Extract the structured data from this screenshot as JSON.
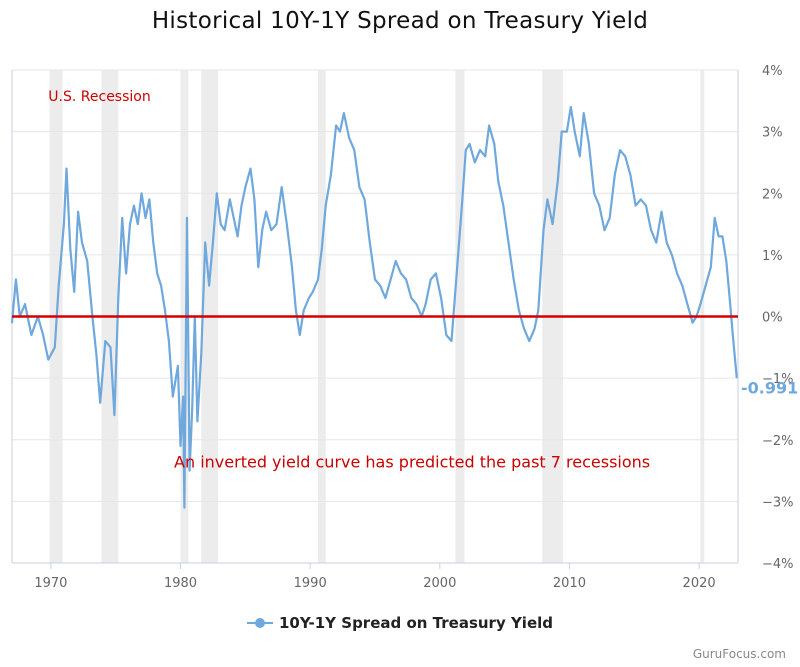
{
  "chart_data": {
    "type": "line",
    "title": "Historical 10Y-1Y Spread on Treasury Yield",
    "series": [
      {
        "name": "10Y-1Y Spread on Treasury Yield",
        "color": "#6fa8dc",
        "points": [
          [
            1967.0,
            -0.1
          ],
          [
            1967.3,
            0.6
          ],
          [
            1967.6,
            0.0
          ],
          [
            1968.0,
            0.2
          ],
          [
            1968.5,
            -0.3
          ],
          [
            1969.0,
            0.0
          ],
          [
            1969.4,
            -0.3
          ],
          [
            1969.8,
            -0.7
          ],
          [
            1970.3,
            -0.5
          ],
          [
            1970.6,
            0.5
          ],
          [
            1971.0,
            1.5
          ],
          [
            1971.2,
            2.4
          ],
          [
            1971.5,
            1.1
          ],
          [
            1971.8,
            0.4
          ],
          [
            1972.1,
            1.7
          ],
          [
            1972.4,
            1.2
          ],
          [
            1972.8,
            0.9
          ],
          [
            1973.2,
            0.0
          ],
          [
            1973.5,
            -0.6
          ],
          [
            1973.8,
            -1.4
          ],
          [
            1974.2,
            -0.4
          ],
          [
            1974.6,
            -0.5
          ],
          [
            1974.9,
            -1.6
          ],
          [
            1975.2,
            0.3
          ],
          [
            1975.5,
            1.6
          ],
          [
            1975.8,
            0.7
          ],
          [
            1976.1,
            1.5
          ],
          [
            1976.4,
            1.8
          ],
          [
            1976.7,
            1.5
          ],
          [
            1977.0,
            2.0
          ],
          [
            1977.3,
            1.6
          ],
          [
            1977.6,
            1.9
          ],
          [
            1977.9,
            1.2
          ],
          [
            1978.2,
            0.7
          ],
          [
            1978.5,
            0.5
          ],
          [
            1978.8,
            0.1
          ],
          [
            1979.1,
            -0.4
          ],
          [
            1979.4,
            -1.3
          ],
          [
            1979.8,
            -0.8
          ],
          [
            1980.0,
            -2.1
          ],
          [
            1980.2,
            -1.3
          ],
          [
            1980.3,
            -3.1
          ],
          [
            1980.5,
            1.6
          ],
          [
            1980.7,
            -2.5
          ],
          [
            1980.9,
            -1.5
          ],
          [
            1981.1,
            0.0
          ],
          [
            1981.3,
            -1.7
          ],
          [
            1981.6,
            -0.6
          ],
          [
            1981.9,
            1.2
          ],
          [
            1982.2,
            0.5
          ],
          [
            1982.5,
            1.2
          ],
          [
            1982.8,
            2.0
          ],
          [
            1983.1,
            1.5
          ],
          [
            1983.4,
            1.4
          ],
          [
            1983.8,
            1.9
          ],
          [
            1984.1,
            1.6
          ],
          [
            1984.4,
            1.3
          ],
          [
            1984.7,
            1.8
          ],
          [
            1985.0,
            2.1
          ],
          [
            1985.4,
            2.4
          ],
          [
            1985.7,
            1.9
          ],
          [
            1986.0,
            0.8
          ],
          [
            1986.3,
            1.4
          ],
          [
            1986.6,
            1.7
          ],
          [
            1987.0,
            1.4
          ],
          [
            1987.4,
            1.5
          ],
          [
            1987.8,
            2.1
          ],
          [
            1988.2,
            1.5
          ],
          [
            1988.6,
            0.8
          ],
          [
            1988.9,
            0.1
          ],
          [
            1989.2,
            -0.3
          ],
          [
            1989.5,
            0.1
          ],
          [
            1989.9,
            0.3
          ],
          [
            1990.2,
            0.4
          ],
          [
            1990.6,
            0.6
          ],
          [
            1990.9,
            1.1
          ],
          [
            1991.2,
            1.8
          ],
          [
            1991.6,
            2.3
          ],
          [
            1992.0,
            3.1
          ],
          [
            1992.3,
            3.0
          ],
          [
            1992.6,
            3.3
          ],
          [
            1993.0,
            2.9
          ],
          [
            1993.4,
            2.7
          ],
          [
            1993.8,
            2.1
          ],
          [
            1994.2,
            1.9
          ],
          [
            1994.6,
            1.2
          ],
          [
            1995.0,
            0.6
          ],
          [
            1995.4,
            0.5
          ],
          [
            1995.8,
            0.3
          ],
          [
            1996.2,
            0.6
          ],
          [
            1996.6,
            0.9
          ],
          [
            1997.0,
            0.7
          ],
          [
            1997.4,
            0.6
          ],
          [
            1997.8,
            0.3
          ],
          [
            1998.2,
            0.2
          ],
          [
            1998.6,
            0.0
          ],
          [
            1998.9,
            0.2
          ],
          [
            1999.3,
            0.6
          ],
          [
            1999.7,
            0.7
          ],
          [
            2000.1,
            0.3
          ],
          [
            2000.5,
            -0.3
          ],
          [
            2000.9,
            -0.4
          ],
          [
            2001.3,
            0.7
          ],
          [
            2001.7,
            1.8
          ],
          [
            2002.0,
            2.7
          ],
          [
            2002.3,
            2.8
          ],
          [
            2002.7,
            2.5
          ],
          [
            2003.1,
            2.7
          ],
          [
            2003.5,
            2.6
          ],
          [
            2003.8,
            3.1
          ],
          [
            2004.2,
            2.8
          ],
          [
            2004.5,
            2.2
          ],
          [
            2004.9,
            1.8
          ],
          [
            2005.3,
            1.2
          ],
          [
            2005.7,
            0.6
          ],
          [
            2006.1,
            0.1
          ],
          [
            2006.5,
            -0.2
          ],
          [
            2006.9,
            -0.4
          ],
          [
            2007.3,
            -0.2
          ],
          [
            2007.6,
            0.1
          ],
          [
            2008.0,
            1.4
          ],
          [
            2008.3,
            1.9
          ],
          [
            2008.7,
            1.5
          ],
          [
            2009.1,
            2.2
          ],
          [
            2009.4,
            3.0
          ],
          [
            2009.8,
            3.0
          ],
          [
            2010.1,
            3.4
          ],
          [
            2010.4,
            3.0
          ],
          [
            2010.8,
            2.6
          ],
          [
            2011.1,
            3.3
          ],
          [
            2011.5,
            2.8
          ],
          [
            2011.9,
            2.0
          ],
          [
            2012.3,
            1.8
          ],
          [
            2012.7,
            1.4
          ],
          [
            2013.1,
            1.6
          ],
          [
            2013.5,
            2.3
          ],
          [
            2013.9,
            2.7
          ],
          [
            2014.3,
            2.6
          ],
          [
            2014.7,
            2.3
          ],
          [
            2015.1,
            1.8
          ],
          [
            2015.5,
            1.9
          ],
          [
            2015.9,
            1.8
          ],
          [
            2016.3,
            1.4
          ],
          [
            2016.7,
            1.2
          ],
          [
            2017.1,
            1.7
          ],
          [
            2017.5,
            1.2
          ],
          [
            2017.9,
            1.0
          ],
          [
            2018.3,
            0.7
          ],
          [
            2018.7,
            0.5
          ],
          [
            2019.1,
            0.2
          ],
          [
            2019.5,
            -0.1
          ],
          [
            2019.8,
            0.0
          ],
          [
            2020.1,
            0.2
          ],
          [
            2020.5,
            0.5
          ],
          [
            2020.9,
            0.8
          ],
          [
            2021.2,
            1.6
          ],
          [
            2021.5,
            1.3
          ],
          [
            2021.8,
            1.3
          ],
          [
            2022.1,
            0.9
          ],
          [
            2022.4,
            0.2
          ],
          [
            2022.6,
            -0.3
          ],
          [
            2022.9,
            -0.99
          ]
        ]
      }
    ],
    "xlim": [
      1967,
      2023
    ],
    "ylim": [
      -4,
      4
    ],
    "x_ticks": [
      1970,
      1980,
      1990,
      2000,
      2010,
      2020
    ],
    "y_ticks": [
      -4,
      -3,
      -2,
      -1,
      0,
      1,
      2,
      3,
      4
    ],
    "y_tick_labels": [
      "−4%",
      "−3%",
      "−2%",
      "−1%",
      "0%",
      "1%",
      "2%",
      "3%",
      "4%"
    ],
    "x_tick_labels": [
      "1970",
      "1980",
      "1990",
      "2000",
      "2010",
      "2020"
    ],
    "y_axis_side": "right",
    "last_value_label": "-0.991",
    "reference_line": {
      "value": 0,
      "color": "#d40000"
    },
    "recessions": [
      [
        1969.9,
        1970.9
      ],
      [
        1973.9,
        1975.2
      ],
      [
        1980.0,
        1980.6
      ],
      [
        1981.6,
        1982.9
      ],
      [
        1990.6,
        1991.2
      ],
      [
        2001.2,
        2001.9
      ],
      [
        2007.9,
        2009.5
      ],
      [
        2020.1,
        2020.4
      ]
    ],
    "recession_color": "#ececec",
    "annotations": [
      {
        "text": "U.S. Recession",
        "color": "#cc0000",
        "x": 1969.8,
        "y": 3.5
      },
      {
        "text": "An inverted yield curve has predicted the past 7 recessions",
        "color": "#cc0000",
        "x": 1979.5,
        "y": -2.45
      }
    ],
    "grid": true,
    "legend_position": "bottom-center"
  },
  "watermark": "GuruFocus.com"
}
